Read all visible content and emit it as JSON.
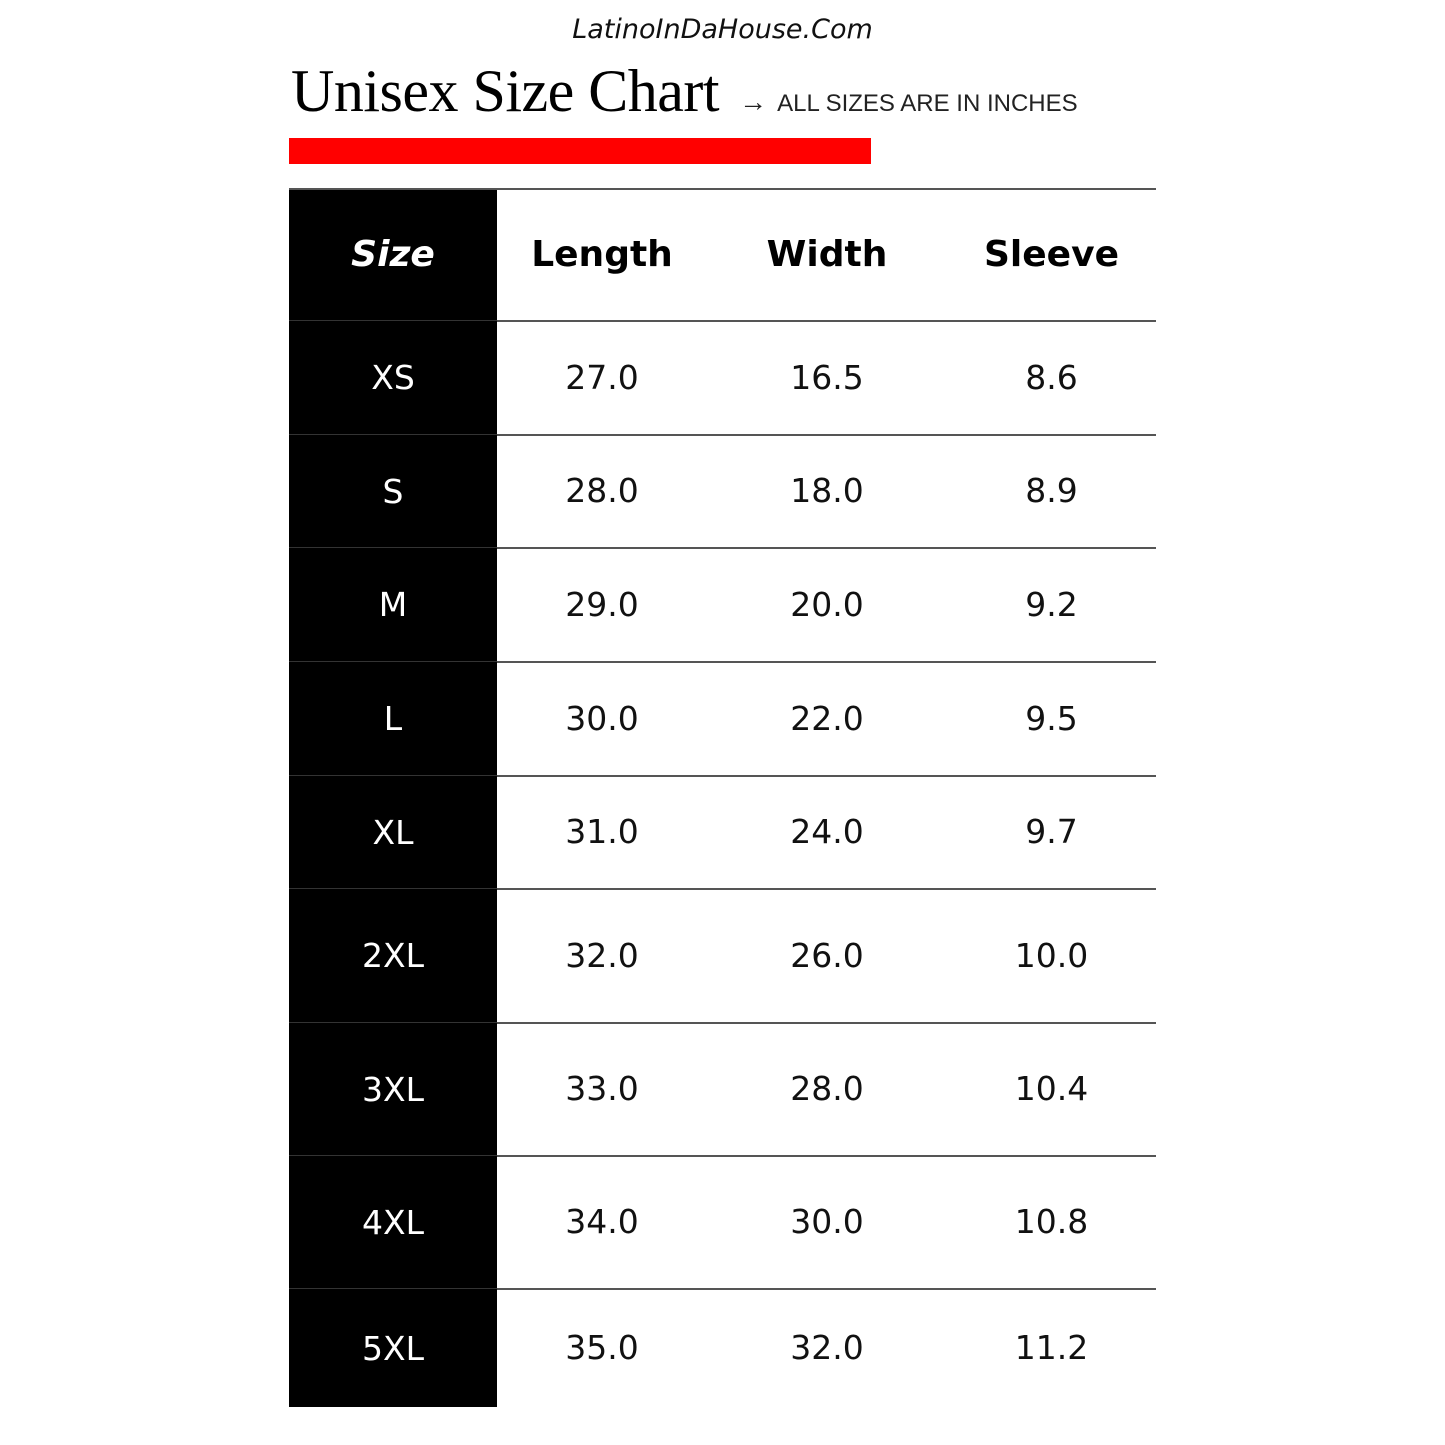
{
  "site": "LatinoInDaHouse.Com",
  "title": "Unisex Size Chart",
  "note": {
    "arrow_icon": "→",
    "text": "ALL SIZES ARE IN INCHES"
  },
  "accent_color": "#ff0000",
  "table": {
    "headers": [
      "Size",
      "Length",
      "Width",
      "Sleeve"
    ],
    "rows": [
      [
        "XS",
        "27.0",
        "16.5",
        "8.6"
      ],
      [
        "S",
        "28.0",
        "18.0",
        "8.9"
      ],
      [
        "M",
        "29.0",
        "20.0",
        "9.2"
      ],
      [
        "L",
        "30.0",
        "22.0",
        "9.5"
      ],
      [
        "XL",
        "31.0",
        "24.0",
        "9.7"
      ],
      [
        "2XL",
        "32.0",
        "26.0",
        "10.0"
      ],
      [
        "3XL",
        "33.0",
        "28.0",
        "10.4"
      ],
      [
        "4XL",
        "34.0",
        "30.0",
        "10.8"
      ],
      [
        "5XL",
        "35.0",
        "32.0",
        "11.2"
      ]
    ]
  }
}
